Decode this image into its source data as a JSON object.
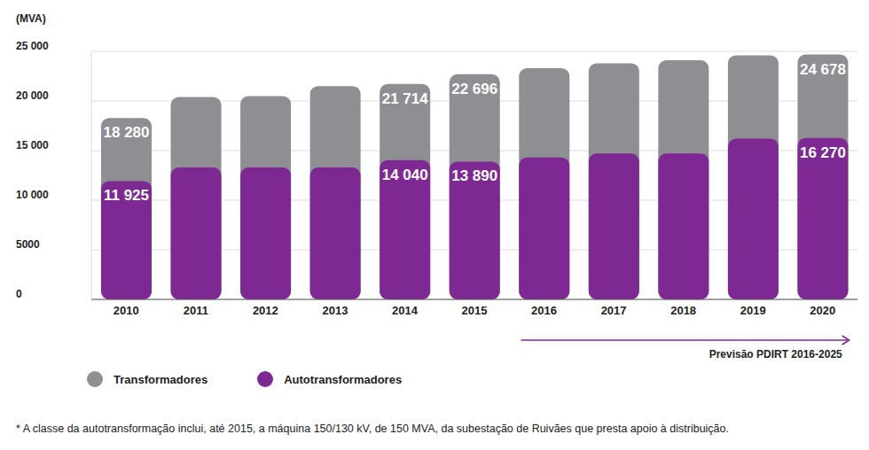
{
  "chart_data": {
    "type": "bar",
    "y_label": "(MVA)",
    "categories": [
      "2010",
      "2011",
      "2012",
      "2013",
      "2014",
      "2015",
      "2016",
      "2017",
      "2018",
      "2019",
      "2020"
    ],
    "series": [
      {
        "name": "Transformadores",
        "color": "#8e8e93",
        "values": [
          18280,
          20400,
          20500,
          21500,
          21714,
          22696,
          23300,
          23800,
          24100,
          24600,
          24678
        ],
        "value_labels": [
          "18 280",
          null,
          null,
          null,
          "21 714",
          "22 696",
          null,
          null,
          null,
          null,
          "24 678"
        ]
      },
      {
        "name": "Autotransformadores",
        "color": "#7e2894",
        "values": [
          11925,
          13300,
          13300,
          13300,
          14040,
          13890,
          14300,
          14700,
          14700,
          16200,
          16270
        ],
        "value_labels": [
          "11 925",
          null,
          null,
          null,
          "14 040",
          "13 890",
          null,
          null,
          null,
          null,
          "16 270"
        ]
      }
    ],
    "ylim": [
      0,
      25000
    ],
    "yticks": [
      0,
      {
        "value": 5000,
        "label": "5000"
      },
      {
        "value": 10000,
        "label": "10 000"
      },
      {
        "value": 15000,
        "label": "15 000"
      },
      {
        "value": 20000,
        "label": "20 000"
      },
      {
        "value": 25000,
        "label": "25 000"
      }
    ],
    "grid": true,
    "data_labels": true,
    "legend": "bottom-left",
    "annotation": {
      "text": "Previsão PDIRT 2016-2025",
      "from": "2016",
      "to": "2020"
    },
    "footnote": "* A classe da autotransformação inclui, até 2015, a máquina 150/130 kV, de 150 MVA, da subestação de Ruivães que presta apoio à distribuição."
  }
}
